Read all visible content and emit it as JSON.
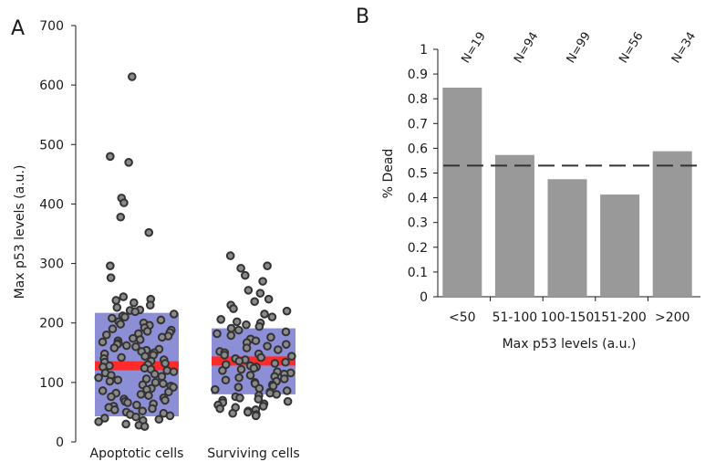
{
  "chart_data": [
    {
      "panel": "A",
      "type": "scatter",
      "ylabel": "Max p53 levels (a.u.)",
      "ylim": [
        0,
        700
      ],
      "yticks": [
        "0",
        "100",
        "200",
        "300",
        "400",
        "500",
        "600",
        "700"
      ],
      "categories": [
        "Apoptotic cells",
        "Surviving cells"
      ],
      "box_color": "#8c8ed6",
      "median_color": "#ff2a2a",
      "point_color": "#333333",
      "boxes": [
        {
          "category": "Apoptotic cells",
          "q1": 43,
          "q3": 217,
          "median": 128
        },
        {
          "category": "Surviving cells",
          "q1": 80,
          "q3": 191,
          "median": 136
        }
      ],
      "series": [
        {
          "category": "Apoptotic cells",
          "values": [
            614,
            480,
            470,
            410,
            402,
            378,
            352,
            296,
            276,
            244,
            240,
            238,
            234,
            230,
            226,
            222,
            221,
            219,
            215,
            212,
            210,
            208,
            205,
            202,
            200,
            198,
            196,
            192,
            190,
            188,
            186,
            184,
            182,
            180,
            178,
            176,
            174,
            172,
            170,
            168,
            166,
            164,
            162,
            160,
            158,
            156,
            154,
            152,
            150,
            148,
            146,
            144,
            142,
            140,
            138,
            136,
            134,
            132,
            130,
            128,
            126,
            124,
            122,
            120,
            118,
            116,
            114,
            112,
            110,
            108,
            106,
            104,
            102,
            100,
            98,
            96,
            94,
            92,
            90,
            88,
            86,
            84,
            82,
            80,
            78,
            76,
            74,
            72,
            70,
            68,
            66,
            64,
            62,
            60,
            58,
            56,
            54,
            52,
            50,
            48,
            46,
            44,
            42,
            40,
            38,
            36,
            34,
            30,
            28,
            26
          ]
        },
        {
          "category": "Surviving cells",
          "values": [
            313,
            296,
            292,
            280,
            270,
            255,
            250,
            240,
            236,
            230,
            224,
            220,
            215,
            210,
            206,
            202,
            200,
            197,
            194,
            191,
            188,
            185,
            182,
            179,
            176,
            173,
            170,
            167,
            164,
            161,
            158,
            155,
            152,
            150,
            148,
            146,
            144,
            142,
            140,
            138,
            136,
            134,
            132,
            130,
            128,
            126,
            124,
            122,
            120,
            118,
            116,
            114,
            112,
            110,
            108,
            106,
            104,
            102,
            100,
            98,
            96,
            94,
            92,
            90,
            88,
            86,
            84,
            82,
            80,
            78,
            76,
            74,
            72,
            70,
            68,
            66,
            64,
            62,
            60,
            58,
            56,
            54,
            52,
            50,
            48,
            46,
            44
          ]
        }
      ]
    },
    {
      "panel": "B",
      "type": "bar",
      "ylabel": "% Dead",
      "xlabel": "Max p53 levels (a.u.)",
      "ylim": [
        0,
        1
      ],
      "yticks": [
        "0",
        "0.1",
        "0.2",
        "0.3",
        "0.4",
        "0.5",
        "0.6",
        "0.7",
        "0.8",
        "0.9",
        "1"
      ],
      "categories": [
        "<50",
        "51-100",
        "100-150",
        "151-200",
        ">200"
      ],
      "values": [
        0.845,
        0.573,
        0.475,
        0.413,
        0.588
      ],
      "annotations": [
        "N=19",
        "N=94",
        "N=99",
        "N=56",
        "N=34"
      ],
      "reference_line": 0.53,
      "bar_color": "#999999"
    }
  ]
}
